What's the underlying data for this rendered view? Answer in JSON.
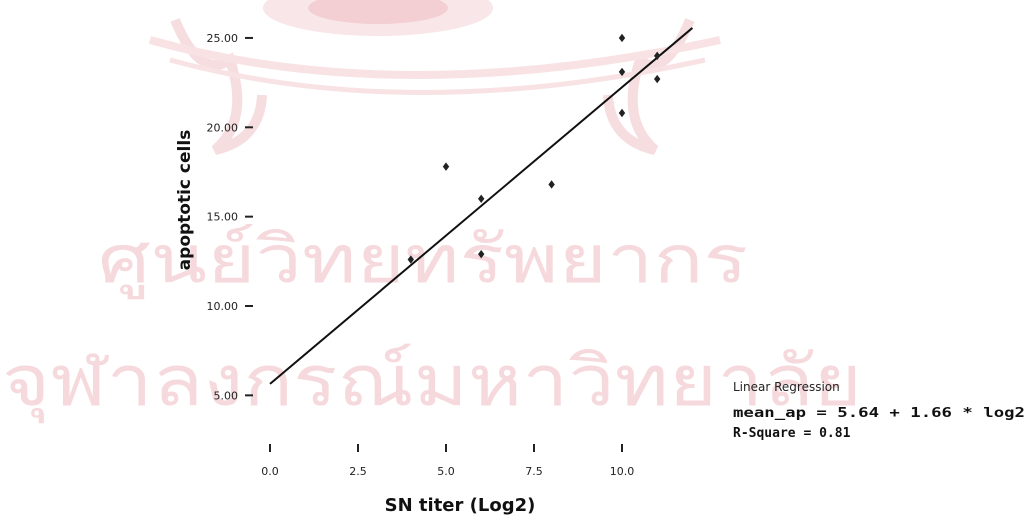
{
  "chart_data": {
    "type": "scatter",
    "title": "",
    "xlabel": "SN titer (Log2)",
    "ylabel": "apoptotic cells",
    "xlim": [
      -0.8,
      12.1
    ],
    "ylim": [
      3.4,
      26.2
    ],
    "x_ticks": [
      0.0,
      2.5,
      5.0,
      7.5,
      10.0
    ],
    "x_tick_labels": [
      "0.0",
      "2.5",
      "5.0",
      "7.5",
      "10.0"
    ],
    "y_ticks": [
      5.0,
      10.0,
      15.0,
      20.0,
      25.0
    ],
    "y_tick_labels": [
      "5.00",
      "10.00",
      "15.00",
      "20.00",
      "25.00"
    ],
    "grid": false,
    "legend": "none",
    "series": [
      {
        "points": [
          {
            "x": 4.0,
            "y": 12.6
          },
          {
            "x": 5.0,
            "y": 17.8
          },
          {
            "x": 6.0,
            "y": 16.0
          },
          {
            "x": 6.0,
            "y": 12.9
          },
          {
            "x": 8.0,
            "y": 16.8
          },
          {
            "x": 10.0,
            "y": 25.0
          },
          {
            "x": 10.0,
            "y": 23.1
          },
          {
            "x": 10.0,
            "y": 20.8
          },
          {
            "x": 11.0,
            "y": 24.0
          },
          {
            "x": 11.0,
            "y": 22.7
          }
        ]
      }
    ],
    "regression": {
      "intercept": 5.64,
      "slope": 1.66,
      "x_range": [
        0.0,
        12.0
      ]
    },
    "annotation": {
      "title": "Linear Regression",
      "equation": "mean_ap = 5.64 + 1.66 * log2",
      "r_square": "R-Square = 0.81"
    },
    "colors": {
      "points": "#222222",
      "line": "#111111",
      "watermark": "#f6d9dc"
    }
  },
  "watermark": {
    "line1": "ศูนย์วิทยทรัพยากร",
    "line2": "จุฬาลงกรณ์มหาวิทยาลัย"
  }
}
